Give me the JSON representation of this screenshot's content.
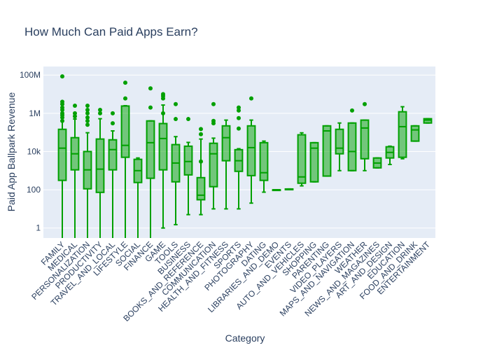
{
  "chart_data": {
    "type": "box",
    "title": "How Much Can Paid Apps Earn?",
    "x_label": "Category",
    "y_label": "Paid App Ballpark Revenue",
    "log_scale": true,
    "grid": true,
    "color": "#00a000",
    "categories": [
      "FAMILY",
      "MEDICAL",
      "PERSONALIZATION",
      "PRODUCTIVITY",
      "TRAVEL_AND_LOCAL",
      "LIFESTYLE",
      "SOCIAL",
      "FINANCE",
      "GAME",
      "TOOLS",
      "BUSINESS",
      "BOOKS_AND_REFERENCE",
      "COMMUNICATION",
      "HEALTH_AND_FITNESS",
      "SPORTS",
      "PHOTOGRAPHY",
      "DATING",
      "LIBRARIES_AND_DEMO",
      "EVENTS",
      "AUTO_AND_VEHICLES",
      "SHOPPING",
      "PARENTING",
      "VIDEO_PLAYERS",
      "MAPS_AND_NAVIGATION",
      "WEATHER",
      "NEWS_AND_MAGAZINES",
      "ART_AND_DESIGN",
      "EDUCATION",
      "FOOD_AND_DRINK",
      "ENTERTAINMENT"
    ],
    "min": [
      0,
      0,
      0,
      0,
      0,
      0,
      0,
      0,
      1,
      1.5,
      5,
      5,
      10,
      10,
      10,
      20,
      75,
      100,
      110,
      160,
      260,
      520,
      1000,
      1000,
      1000,
      1400,
      2100,
      4200,
      35000,
      310000
    ],
    "q1": [
      310,
      1100,
      112,
      73,
      1100,
      5000,
      240,
      400,
      1100,
      260,
      600,
      30,
      145,
      3300,
      920,
      550,
      310,
      100,
      110,
      220,
      260,
      520,
      7600,
      1000,
      4200,
      1400,
      4600,
      5000,
      35000,
      310000
    ],
    "median": [
      15000,
      7600,
      1100,
      1200,
      12600,
      21000,
      1000,
      29000,
      48000,
      2500,
      3000,
      52,
      7600,
      53000,
      3300,
      16000,
      780,
      100,
      110,
      470,
      15000,
      120000,
      15000,
      10000,
      170000,
      2500,
      9000,
      200000,
      135000,
      440000
    ],
    "q3": [
      145000,
      53000,
      10000,
      45000,
      41000,
      2400000,
      3900,
      400000,
      290000,
      23000,
      19000,
      430,
      27000,
      220000,
      12500,
      220000,
      29000,
      100,
      110,
      75000,
      29000,
      220000,
      145000,
      310000,
      440000,
      4600,
      17700,
      1200000,
      220000,
      520000
    ],
    "max": [
      3000000,
      500000,
      96000,
      520000,
      120000,
      2500000,
      4600,
      400000,
      2700000,
      60000,
      30000,
      45000,
      50000,
      440000,
      14000,
      440000,
      35000,
      100,
      110,
      95000,
      29000,
      220000,
      310000,
      310000,
      440000,
      4600,
      19000,
      2200000,
      220000,
      520000
    ],
    "outliers": [
      [
        85000000,
        4000000,
        3000000,
        2000000,
        1500000,
        1000000,
        800000,
        600000,
        400000
      ],
      [
        2500000,
        1000000,
        700000
      ],
      [
        2500000,
        1500000,
        1000000,
        600000,
        400000,
        250000
      ],
      [
        1500000,
        1000000
      ],
      [
        1000000,
        300000
      ],
      [
        6000000,
        40000000
      ],
      [],
      [
        2000000,
        20000000
      ],
      [
        1000000,
        6000000,
        8000000,
        10000000
      ],
      [
        3000000,
        500000
      ],
      [
        500000
      ],
      [
        150000,
        80000,
        3000
      ],
      [
        300000,
        400000,
        3000000
      ],
      [],
      [
        160000,
        560000,
        1400000,
        2000000
      ],
      [
        6000000
      ],
      [],
      [],
      [],
      [],
      [],
      [],
      [],
      [
        1400000
      ],
      [
        3000000
      ],
      [],
      [],
      [],
      [],
      []
    ],
    "ylim": [
      0.3,
      280000000
    ],
    "yticks": [
      1,
      100,
      {
        "value": 10000,
        "label": "10k"
      },
      {
        "value": 1000000,
        "label": "1M"
      },
      {
        "value": 100000000,
        "label": "100M"
      }
    ]
  }
}
